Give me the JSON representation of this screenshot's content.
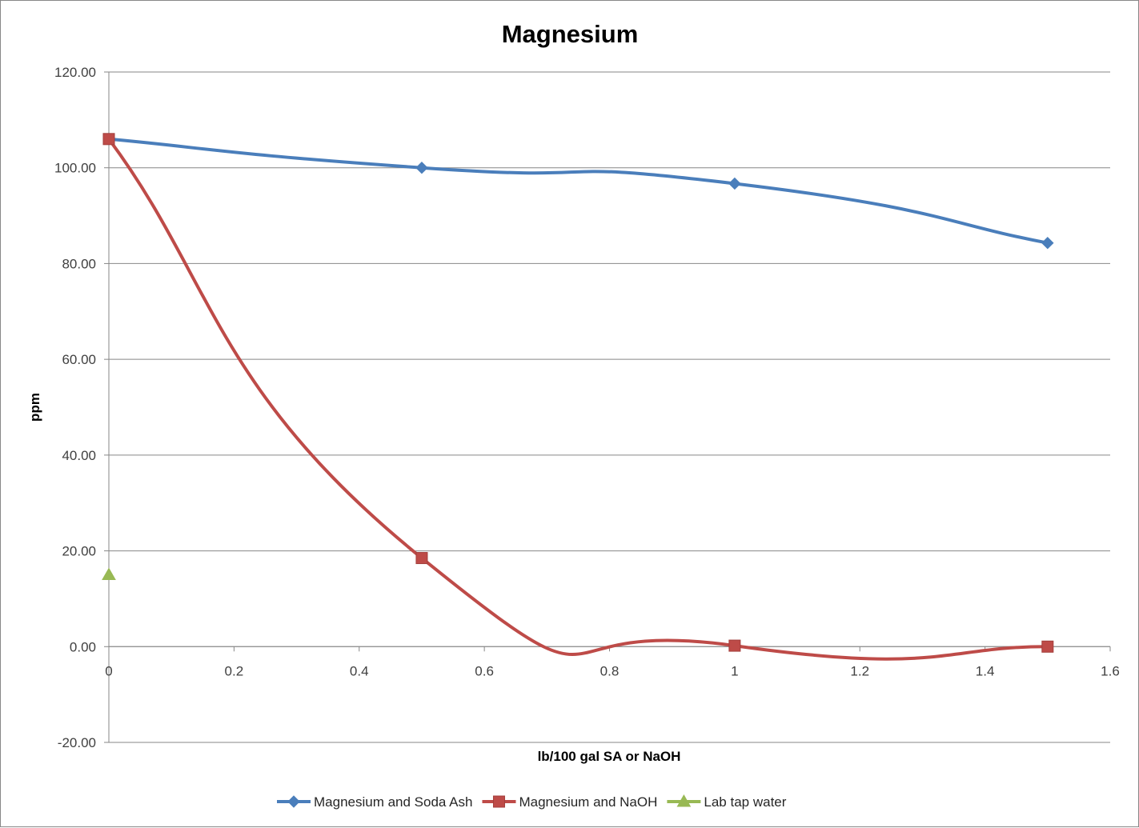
{
  "chart_data": {
    "type": "line",
    "title": "Magnesium",
    "xlabel": "lb/100 gal SA or NaOH",
    "ylabel": "ppm",
    "xlim": [
      0,
      1.6
    ],
    "ylim": [
      -20,
      120
    ],
    "x_ticks": [
      0,
      0.2,
      0.4,
      0.6,
      0.8,
      1,
      1.2,
      1.4,
      1.6
    ],
    "x_tick_labels": [
      "0",
      "0.2",
      "0.4",
      "0.6",
      "0.8",
      "1",
      "1.2",
      "1.4",
      "1.6"
    ],
    "y_ticks": [
      -20,
      0,
      20,
      40,
      60,
      80,
      100,
      120
    ],
    "y_tick_labels": [
      "-20.00",
      "0.00",
      "20.00",
      "40.00",
      "60.00",
      "80.00",
      "100.00",
      "120.00"
    ],
    "grid": {
      "horizontal": true,
      "vertical": false
    },
    "legend_position": "bottom",
    "series": [
      {
        "name": "Magnesium and Soda Ash",
        "color": "#4a7ebb",
        "marker": "diamond",
        "smooth": true,
        "x": [
          0,
          0.5,
          1,
          1.5
        ],
        "y": [
          106,
          100,
          96.7,
          84.3
        ]
      },
      {
        "name": "Magnesium and NaOH",
        "color": "#be4b48",
        "marker": "square",
        "smooth": true,
        "x": [
          0,
          0.5,
          1,
          1.5
        ],
        "y": [
          106,
          18.5,
          0.2,
          0
        ]
      },
      {
        "name": "Lab tap water",
        "color": "#98b954",
        "marker": "triangle",
        "smooth": false,
        "x": [
          0
        ],
        "y": [
          15
        ]
      }
    ]
  }
}
